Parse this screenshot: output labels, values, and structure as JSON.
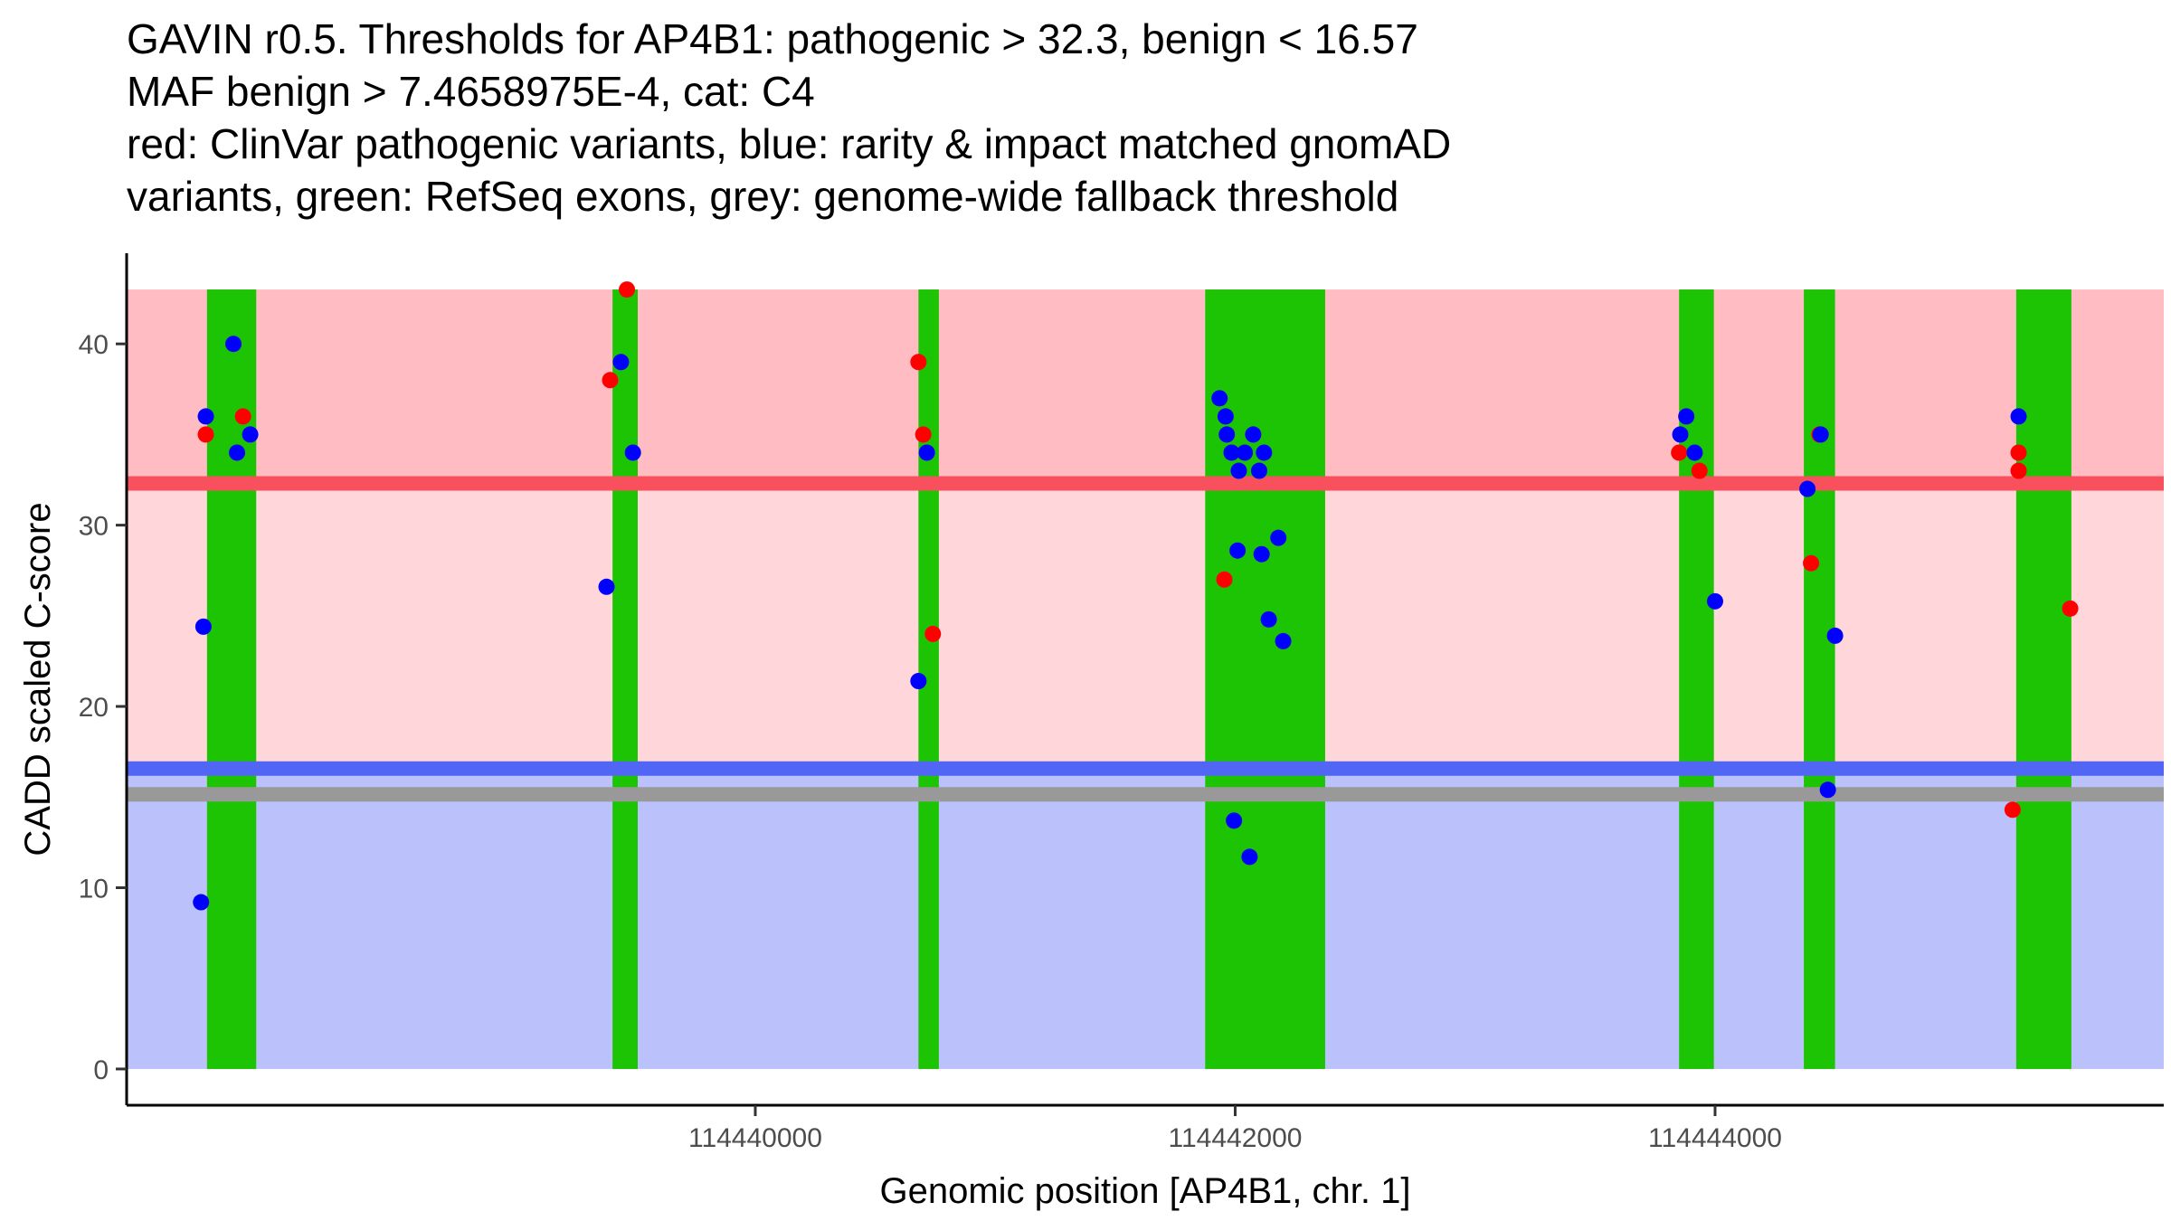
{
  "chart_data": {
    "type": "scatter",
    "title_lines": [
      "GAVIN r0.5. Thresholds for AP4B1: pathogenic > 32.3, benign < 16.57",
      "MAF benign > 7.4658975E-4, cat: C4",
      "red: ClinVar pathogenic variants, blue: rarity & impact matched gnomAD",
      "variants, green: RefSeq exons, grey: genome-wide fallback threshold"
    ],
    "xlabel": "Genomic position [AP4B1, chr. 1]",
    "ylabel": "CADD scaled C-score",
    "xlim": [
      114437380,
      114445870
    ],
    "ylim": [
      -2,
      45
    ],
    "x_ticks": [
      114440000,
      114442000,
      114444000
    ],
    "y_ticks": [
      0,
      10,
      20,
      30,
      40
    ],
    "grid": false,
    "thresholds": {
      "pathogenic": 32.3,
      "benign": 16.57,
      "genome_wide_fallback": 15.15,
      "band_top": 43
    },
    "colors": {
      "pathogenic_band": "#ffd6da",
      "pathogenic_top_band": "#ffbcc3",
      "benign_band": "#bbc1fa",
      "pathogenic_line": "#f8505d",
      "benign_line": "#5166f5",
      "fallback_line": "#999999",
      "exon": "#1cc403",
      "clinvar": "#ff0000",
      "gnomad": "#0000ff"
    },
    "exons": [
      [
        114437715,
        114437920
      ],
      [
        114439405,
        114439510
      ],
      [
        114440680,
        114440765
      ],
      [
        114441875,
        114442375
      ],
      [
        114443850,
        114443995
      ],
      [
        114444370,
        114444500
      ],
      [
        114445255,
        114445485
      ]
    ],
    "series": [
      {
        "name": "ClinVar pathogenic",
        "points": [
          [
            114437710,
            35
          ],
          [
            114437865,
            36
          ],
          [
            114439395,
            38
          ],
          [
            114439465,
            43
          ],
          [
            114440680,
            39
          ],
          [
            114440700,
            35
          ],
          [
            114440740,
            24
          ],
          [
            114441955,
            27
          ],
          [
            114443850,
            34
          ],
          [
            114443935,
            33
          ],
          [
            114444400,
            27.9
          ],
          [
            114444435,
            35
          ],
          [
            114445240,
            14.3
          ],
          [
            114445265,
            34
          ],
          [
            114445265,
            33
          ],
          [
            114445480,
            25.4
          ]
        ]
      },
      {
        "name": "gnomAD rarity & impact matched",
        "points": [
          [
            114437700,
            24.4
          ],
          [
            114437710,
            36
          ],
          [
            114437690,
            9.2
          ],
          [
            114437825,
            40
          ],
          [
            114437840,
            34
          ],
          [
            114437895,
            35
          ],
          [
            114439380,
            26.6
          ],
          [
            114439440,
            39
          ],
          [
            114439490,
            34
          ],
          [
            114440680,
            21.4
          ],
          [
            114440715,
            34
          ],
          [
            114441935,
            37
          ],
          [
            114441960,
            36
          ],
          [
            114441965,
            35
          ],
          [
            114441985,
            34
          ],
          [
            114442015,
            33
          ],
          [
            114442040,
            34
          ],
          [
            114442075,
            35
          ],
          [
            114442100,
            33
          ],
          [
            114442120,
            34
          ],
          [
            114442010,
            28.6
          ],
          [
            114442110,
            28.4
          ],
          [
            114442180,
            29.3
          ],
          [
            114442140,
            24.8
          ],
          [
            114442200,
            23.6
          ],
          [
            114441995,
            13.7
          ],
          [
            114442060,
            11.7
          ],
          [
            114443855,
            35
          ],
          [
            114443880,
            36
          ],
          [
            114443915,
            34
          ],
          [
            114444000,
            25.8
          ],
          [
            114444385,
            32
          ],
          [
            114444440,
            35
          ],
          [
            114444470,
            15.4
          ],
          [
            114444500,
            23.9
          ],
          [
            114445265,
            36
          ]
        ]
      }
    ]
  }
}
